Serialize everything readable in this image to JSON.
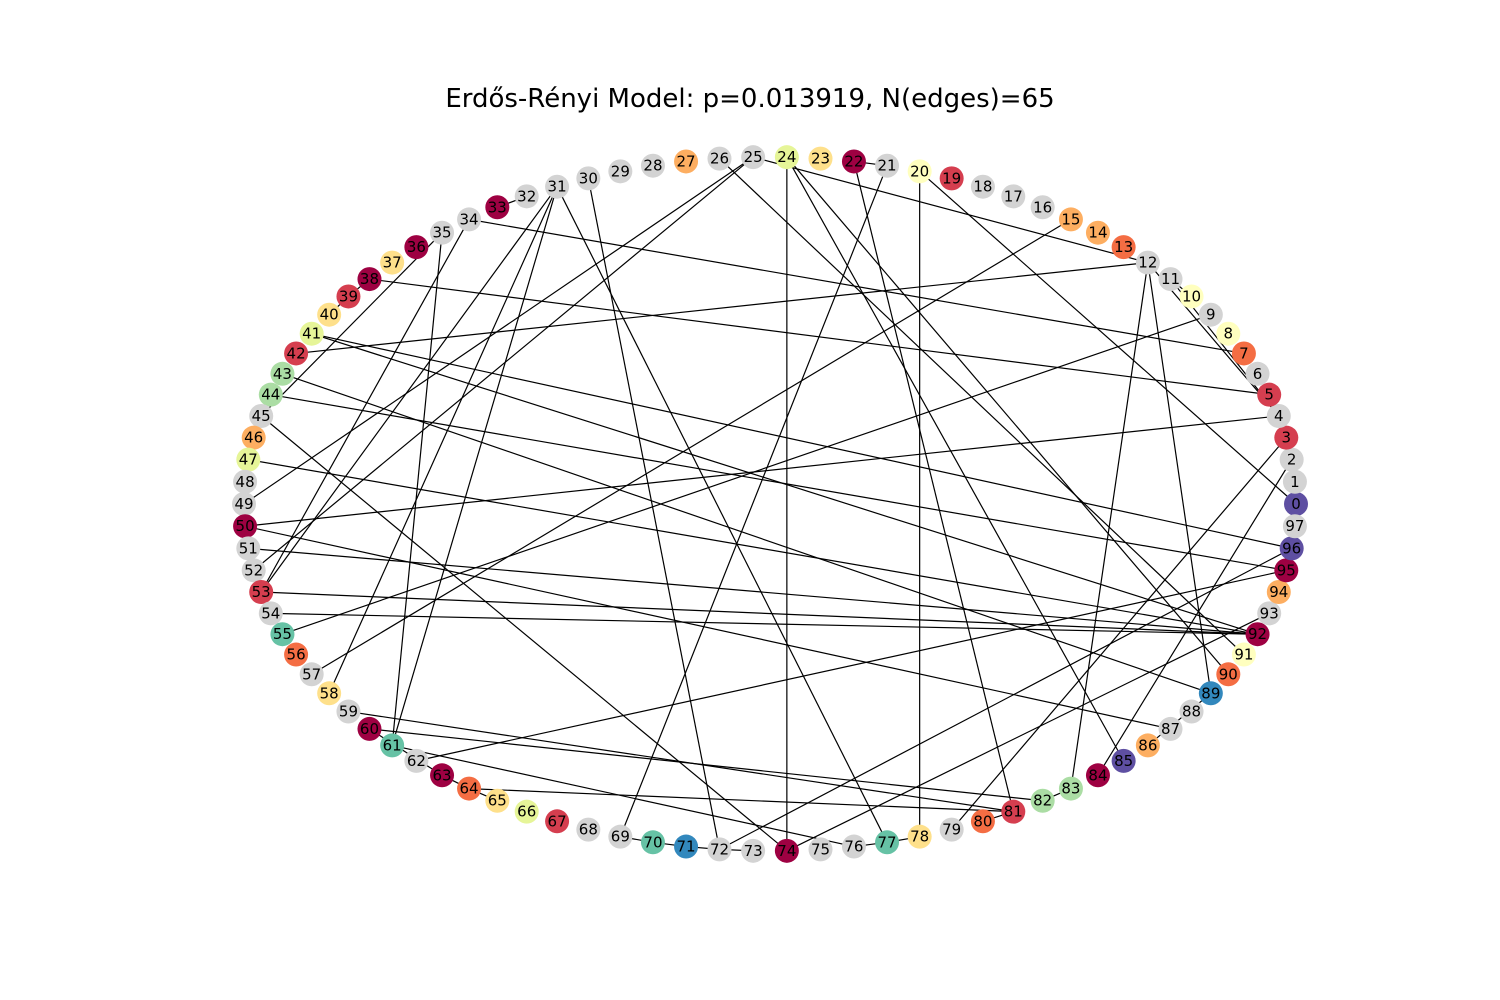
{
  "figure": {
    "title": "Erdős-Rényi Model: p=0.013919, N(edges)=65"
  },
  "graph": {
    "node_count": 98,
    "edge_count": 65,
    "layout": "circular",
    "default_node_color": "#d3d3d3",
    "edge_color": "#000000",
    "node_colors": {
      "0": "#5e4fa2",
      "3": "#d53e4f",
      "5": "#d53e4f",
      "7": "#f46d43",
      "8": "#ffffbf",
      "10": "#ffffbf",
      "13": "#f46d43",
      "14": "#fdae61",
      "15": "#fdae61",
      "19": "#d53e4f",
      "20": "#ffffbf",
      "22": "#9e0142",
      "23": "#fee08b",
      "24": "#e6f598",
      "27": "#fdae61",
      "33": "#9e0142",
      "36": "#9e0142",
      "37": "#fee08b",
      "38": "#9e0142",
      "39": "#d53e4f",
      "40": "#fee08b",
      "41": "#e6f598",
      "42": "#d53e4f",
      "43": "#abdda4",
      "44": "#abdda4",
      "46": "#fdae61",
      "47": "#e6f598",
      "50": "#9e0142",
      "53": "#d53e4f",
      "55": "#66c2a5",
      "56": "#f46d43",
      "58": "#fee08b",
      "60": "#9e0142",
      "61": "#66c2a5",
      "63": "#9e0142",
      "64": "#f46d43",
      "65": "#fee08b",
      "66": "#e6f598",
      "67": "#d53e4f",
      "70": "#66c2a5",
      "71": "#3288bd",
      "74": "#9e0142",
      "77": "#66c2a5",
      "78": "#fee08b",
      "80": "#f46d43",
      "81": "#d53e4f",
      "82": "#abdda4",
      "83": "#abdda4",
      "84": "#9e0142",
      "85": "#5e4fa2",
      "86": "#fdae61",
      "89": "#3288bd",
      "90": "#f46d43",
      "91": "#ffffbf",
      "92": "#9e0142",
      "94": "#fdae61",
      "95": "#9e0142",
      "96": "#5e4fa2"
    },
    "edges": [
      [
        30,
        72
      ],
      [
        31,
        53
      ],
      [
        31,
        61
      ],
      [
        31,
        77
      ],
      [
        32,
        33
      ],
      [
        34,
        53
      ],
      [
        34,
        7
      ],
      [
        35,
        61
      ],
      [
        35,
        45
      ],
      [
        38,
        39
      ],
      [
        38,
        5
      ],
      [
        39,
        40
      ],
      [
        41,
        92
      ],
      [
        41,
        96
      ],
      [
        42,
        12
      ],
      [
        43,
        89
      ],
      [
        44,
        95
      ],
      [
        45,
        74
      ],
      [
        47,
        92
      ],
      [
        49,
        25
      ],
      [
        50,
        4
      ],
      [
        50,
        87
      ],
      [
        51,
        92
      ],
      [
        53,
        92
      ],
      [
        54,
        92
      ],
      [
        55,
        9
      ],
      [
        57,
        15
      ],
      [
        58,
        31
      ],
      [
        59,
        81
      ],
      [
        60,
        82
      ],
      [
        61,
        76
      ],
      [
        62,
        95
      ],
      [
        63,
        64
      ],
      [
        64,
        81
      ],
      [
        69,
        70
      ],
      [
        69,
        21
      ],
      [
        70,
        71
      ],
      [
        71,
        72
      ],
      [
        72,
        73
      ],
      [
        72,
        96
      ],
      [
        74,
        24
      ],
      [
        74,
        93
      ],
      [
        76,
        77
      ],
      [
        77,
        78
      ],
      [
        78,
        20
      ],
      [
        79,
        3
      ],
      [
        80,
        81
      ],
      [
        81,
        22
      ],
      [
        82,
        83
      ],
      [
        83,
        12
      ],
      [
        84,
        2
      ],
      [
        85,
        24
      ],
      [
        86,
        89
      ],
      [
        89,
        12
      ],
      [
        90,
        24
      ],
      [
        91,
        26
      ],
      [
        0,
        20
      ],
      [
        12,
        4
      ],
      [
        11,
        4
      ],
      [
        10,
        11
      ],
      [
        12,
        25
      ],
      [
        22,
        21
      ],
      [
        52,
        25
      ],
      [
        63,
        60
      ],
      [
        64,
        65
      ]
    ]
  }
}
